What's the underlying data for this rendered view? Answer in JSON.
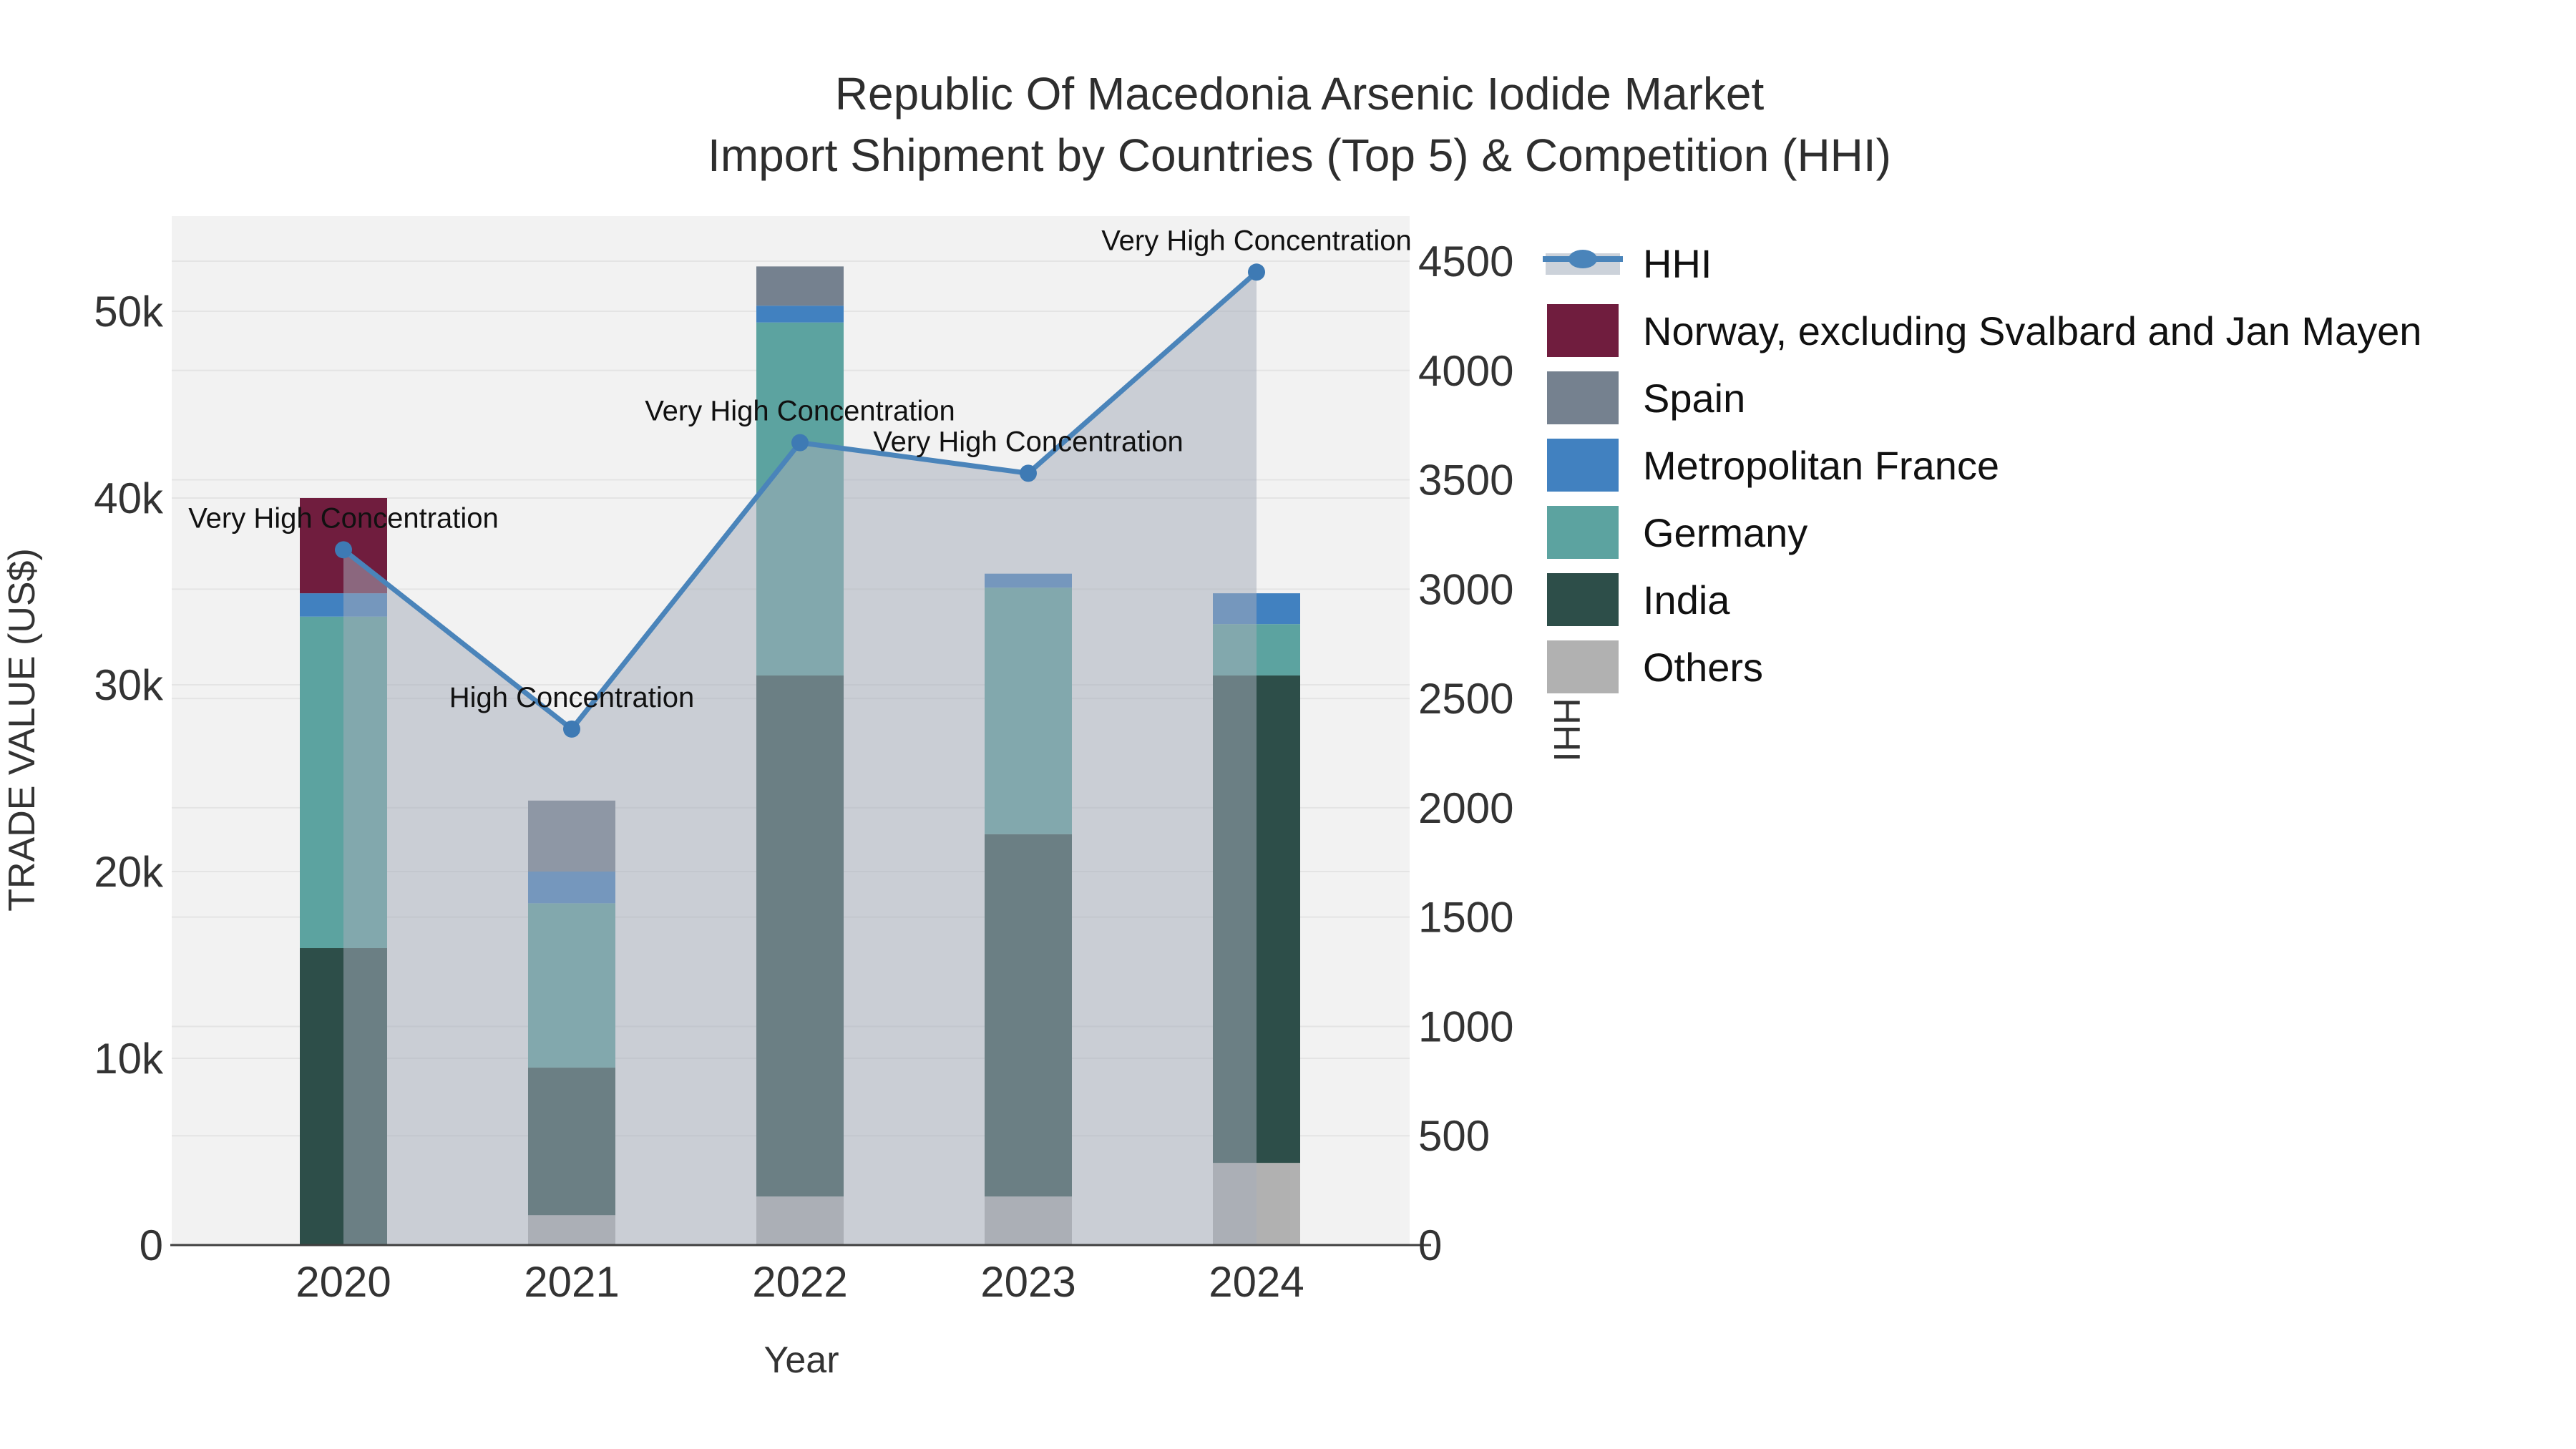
{
  "title": {
    "line1": "Republic Of Macedonia Arsenic Iodide Market",
    "line2": "Import Shipment by Countries (Top 5) & Competition (HHI)"
  },
  "chart_data": {
    "type": "bar",
    "subtype": "stacked-bars-with-line",
    "categories": [
      "2020",
      "2021",
      "2022",
      "2023",
      "2024"
    ],
    "xlabel": "Year",
    "ylabel_left": "TRADE VALUE (US$)",
    "ylabel_right": "HHI",
    "y_left_ticks": [
      {
        "label": "0",
        "value": 0
      },
      {
        "label": "10k",
        "value": 10000
      },
      {
        "label": "20k",
        "value": 20000
      },
      {
        "label": "30k",
        "value": 30000
      },
      {
        "label": "40k",
        "value": 40000
      },
      {
        "label": "50k",
        "value": 50000
      }
    ],
    "y_left_range": [
      0,
      55200
    ],
    "y_right_ticks": [
      0,
      500,
      1000,
      1500,
      2000,
      2500,
      3000,
      3500,
      4000,
      4500
    ],
    "y_right_range": [
      0,
      4715
    ],
    "grid": true,
    "legend_position": "right",
    "series": [
      {
        "name": "Others",
        "color": "#b1b1b1",
        "values": [
          0,
          1600,
          2600,
          2600,
          4400
        ]
      },
      {
        "name": "India",
        "color": "#2d4e49",
        "values": [
          15900,
          7900,
          27900,
          19400,
          26100
        ]
      },
      {
        "name": "Germany",
        "color": "#5ca3a0",
        "values": [
          17750,
          8800,
          18900,
          13200,
          2750
        ]
      },
      {
        "name": "Metropolitan France",
        "color": "#4181c0",
        "values": [
          1250,
          1700,
          900,
          750,
          1650
        ]
      },
      {
        "name": "Spain",
        "color": "#75818f",
        "values": [
          0,
          3800,
          2100,
          0,
          0
        ]
      },
      {
        "name": "Norway, excluding Svalbard and Jan Mayen",
        "color": "#701d3e",
        "values": [
          5100,
          0,
          0,
          0,
          0
        ]
      }
    ],
    "bar_totals": [
      40000,
      23800,
      52400,
      35950,
      34900
    ],
    "line_series": {
      "name": "HHI",
      "color": "#4a84ba",
      "marker_color": "#3e7ab4",
      "area_fill": "rgba(164,173,186,0.52)",
      "values": [
        3180,
        2360,
        3670,
        3530,
        4450
      ]
    },
    "annotations": [
      {
        "category": "2020",
        "text": "Very High Concentration"
      },
      {
        "category": "2021",
        "text": "High Concentration"
      },
      {
        "category": "2022",
        "text": "Very High Concentration"
      },
      {
        "category": "2023",
        "text": "Very High Concentration"
      },
      {
        "category": "2024",
        "text": "Very High Concentration"
      }
    ]
  },
  "legend": {
    "items": [
      {
        "label": "HHI",
        "type": "line",
        "color": "#4a84ba",
        "band_color": "#ccd2da"
      },
      {
        "label": "Norway, excluding Svalbard and Jan Mayen",
        "type": "swatch",
        "color": "#701d3e"
      },
      {
        "label": "Spain",
        "type": "swatch",
        "color": "#75818f"
      },
      {
        "label": "Metropolitan France",
        "type": "swatch",
        "color": "#4181c0"
      },
      {
        "label": "Germany",
        "type": "swatch",
        "color": "#5ca3a0"
      },
      {
        "label": "India",
        "type": "swatch",
        "color": "#2d4e49"
      },
      {
        "label": "Others",
        "type": "swatch",
        "color": "#b1b1b1"
      }
    ]
  },
  "colors": {
    "plot_background": "#f2f2f2",
    "gridline": "#e4e4e4",
    "axis_line": "#3f3f3f",
    "page_background": "#ffffff",
    "text": "#333333"
  }
}
